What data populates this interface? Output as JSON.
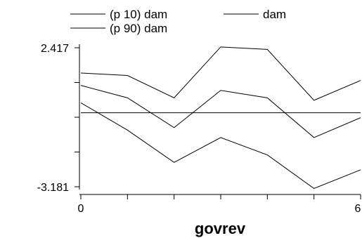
{
  "chart_data": {
    "type": "line",
    "title": "",
    "xlabel": "govrev",
    "ylabel": "",
    "x": [
      0,
      1,
      2,
      3,
      4,
      5,
      6
    ],
    "xlim": [
      0,
      6
    ],
    "ylim": [
      -3.181,
      2.417
    ],
    "x_tick_labels": [
      "0",
      "6"
    ],
    "y_tick_labels": [
      "2.417",
      "-3.181"
    ],
    "grid": false,
    "legend_position": "top",
    "series": [
      {
        "name": "(p 10) dam",
        "values": [
          0.2,
          -0.9,
          -2.2,
          -1.2,
          -1.9,
          -3.25,
          -2.5
        ],
        "color": "#000000"
      },
      {
        "name": "dam",
        "values": [
          -0.2,
          -0.2,
          -0.2,
          -0.2,
          -0.2,
          -0.2,
          -0.2
        ],
        "color": "#000000"
      },
      {
        "name": "(p 90) dam",
        "values": [
          1.4,
          1.3,
          0.4,
          2.45,
          2.35,
          0.3,
          1.1
        ],
        "color": "#000000"
      },
      {
        "name": "",
        "values": [
          0.9,
          0.4,
          -0.8,
          0.7,
          0.4,
          -1.2,
          -0.4
        ],
        "color": "#000000"
      }
    ]
  }
}
